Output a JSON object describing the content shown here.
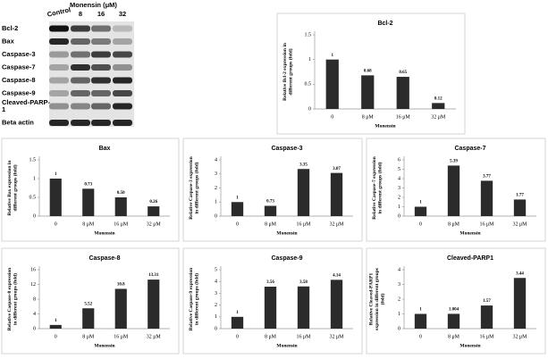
{
  "blot": {
    "header": "Monensin (μM)",
    "lanes": [
      "Control",
      "8",
      "16",
      "32"
    ],
    "rows": [
      "Bcl-2",
      "Bax",
      "Caspase-3",
      "Caspase-7",
      "Caspase-8",
      "Caspase-9",
      "Cleaved-PARP-1",
      "Beta actin"
    ]
  },
  "chart_data": [
    {
      "type": "bar",
      "title": "Bcl-2",
      "y_label": "Relative Bcl-2 expression in different groups (fold)",
      "x_label": "Monensin",
      "categories": [
        "0",
        "8 μM",
        "16 μM",
        "32 μM"
      ],
      "values": [
        1,
        0.68,
        0.65,
        0.12
      ],
      "color": "#2b2b2b",
      "ylim": [
        0,
        1.5
      ],
      "yticks": [
        0,
        0.5,
        1,
        1.5
      ]
    },
    {
      "type": "bar",
      "title": "Bax",
      "y_label": "Relative Bax expression in different groups (fold)",
      "x_label": "Monensin",
      "categories": [
        "0",
        "8 μM",
        "16 μM",
        "32 μM"
      ],
      "values": [
        1,
        0.73,
        0.5,
        0.26
      ],
      "value_labels": [
        "1",
        "0.73",
        "0.50",
        "0.26"
      ],
      "color": "#2b2b2b",
      "ylim": [
        0,
        1.5
      ],
      "yticks": [
        0,
        0.5,
        1,
        1.5
      ]
    },
    {
      "type": "bar",
      "title": "Caspase-3",
      "y_label": "Relative Caspase-3 expression in different groups (fold)",
      "x_label": "Monensin",
      "categories": [
        "0",
        "8 μM",
        "16 μM",
        "32 μM"
      ],
      "values": [
        1,
        0.73,
        3.35,
        3.07
      ],
      "color": "#2b2b2b",
      "ylim": [
        0,
        4
      ],
      "yticks": [
        0,
        1,
        2,
        3,
        4
      ]
    },
    {
      "type": "bar",
      "title": "Caspase-7",
      "y_label": "Relative Caspase-7 expression in different groups (fold)",
      "x_label": "Monensin",
      "categories": [
        "0",
        "8 μM",
        "16 μM",
        "32 μM"
      ],
      "values": [
        1,
        5.39,
        3.77,
        1.77
      ],
      "color": "#2b2b2b",
      "ylim": [
        0,
        6
      ],
      "yticks": [
        0,
        1,
        2,
        3,
        4,
        5,
        6
      ]
    },
    {
      "type": "bar",
      "title": "Caspase-8",
      "y_label": "Relative Caspase-8 expression in different groups (fold)",
      "x_label": "Monensin",
      "categories": [
        "0",
        "8 μM",
        "16 μM",
        "32 μM"
      ],
      "values": [
        1,
        5.52,
        10.8,
        13.31
      ],
      "color": "#2b2b2b",
      "ylim": [
        0,
        16
      ],
      "yticks": [
        0,
        4,
        8,
        12,
        16
      ]
    },
    {
      "type": "bar",
      "title": "Caspase-9",
      "y_label": "Relative Caspase-9 expression in different groups (fold)",
      "x_label": "Monensin",
      "categories": [
        "0",
        "8 μM",
        "16 μM",
        "32 μM"
      ],
      "values": [
        1,
        3.56,
        3.58,
        4.14
      ],
      "color": "#2b2b2b",
      "ylim": [
        0,
        5
      ],
      "yticks": [
        0,
        1,
        2,
        3,
        4,
        5
      ]
    },
    {
      "type": "bar",
      "title": "Cleaved-PARP1",
      "y_label": "Relative Cleaved-PARP1 expression in different groups (fold)",
      "x_label": "Monensin",
      "categories": [
        "0",
        "8 μM",
        "16 μM",
        "32 μM"
      ],
      "values": [
        1,
        1.004,
        1.57,
        3.44
      ],
      "color": "#2b2b2b",
      "ylim": [
        0,
        4
      ],
      "yticks": [
        0,
        1,
        2,
        3,
        4
      ]
    }
  ]
}
